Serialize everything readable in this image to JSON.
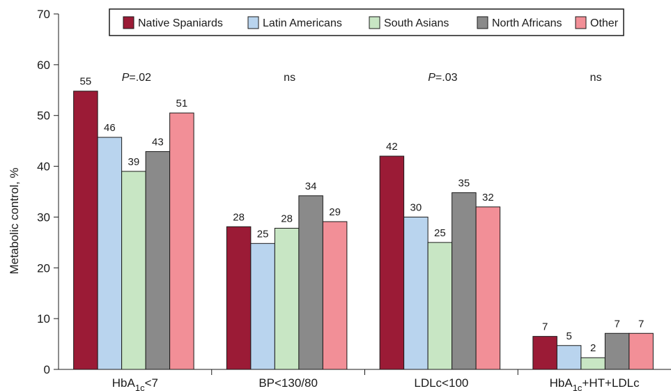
{
  "chart_data": {
    "type": "bar",
    "ylabel": "Metabolic control, %",
    "ylim": [
      0,
      70
    ],
    "yticks": [
      0,
      10,
      20,
      30,
      40,
      50,
      60,
      70
    ],
    "grid": false,
    "legend_position": "top-right",
    "categories": [
      {
        "base": "HbA",
        "sub": "1c",
        "rest": "<7"
      },
      {
        "base": "BP<130/80",
        "sub": "",
        "rest": ""
      },
      {
        "base": "LDLc<100",
        "sub": "",
        "rest": ""
      },
      {
        "base": "HbA",
        "sub": "1c",
        "rest": "+HT+LDLc"
      }
    ],
    "annotations": [
      {
        "italic": "P",
        "text": "=.02"
      },
      {
        "italic": "",
        "text": "ns"
      },
      {
        "italic": "P",
        "text": "=.03"
      },
      {
        "italic": "",
        "text": "ns"
      }
    ],
    "series": [
      {
        "name": "Native Spaniards",
        "color": "#9b1b36",
        "values": [
          55,
          28,
          42,
          7
        ],
        "plot": [
          54.8,
          28.1,
          42.0,
          6.5
        ]
      },
      {
        "name": "Latin Americans",
        "color": "#b9d4ee",
        "values": [
          46,
          25,
          30,
          5
        ],
        "plot": [
          45.7,
          24.8,
          30.0,
          4.7
        ]
      },
      {
        "name": "South Asians",
        "color": "#c8e6c4",
        "values": [
          39,
          28,
          25,
          2
        ],
        "plot": [
          39.0,
          27.8,
          25.0,
          2.3
        ]
      },
      {
        "name": "North Africans",
        "color": "#8a8a8a",
        "values": [
          43,
          34,
          35,
          7
        ],
        "plot": [
          42.9,
          34.2,
          34.8,
          7.1
        ]
      },
      {
        "name": "Other",
        "color": "#f28f97",
        "values": [
          51,
          29,
          32,
          7
        ],
        "plot": [
          50.5,
          29.1,
          32.0,
          7.1
        ]
      }
    ]
  }
}
